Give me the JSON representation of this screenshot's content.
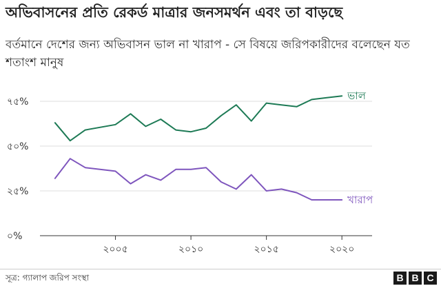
{
  "title": "অভিবাসনের প্রতি রেকর্ড মাত্রার জনসমর্থন এবং তা বাড়ছে",
  "subtitle": "বর্তমানে দেশের জন্য অভিবাসন ভাল না খারাপ - সে বিষয়ে জরিপকারীদের বলেছেন যত শতাংশ মানুষ",
  "source": "সূত্র: গ্যালাপ জরিপ সংস্থা",
  "logo": [
    "B",
    "B",
    "C"
  ],
  "chart_data": {
    "type": "line",
    "x": [
      2001,
      2002,
      2003,
      2005,
      2006,
      2007,
      2008,
      2009,
      2010,
      2011,
      2012,
      2013,
      2014,
      2015,
      2016,
      2017,
      2018,
      2019,
      2020
    ],
    "series": [
      {
        "name": "ভাল",
        "color": "#1d7a55",
        "values": [
          63,
          53,
          59,
          62,
          68,
          61,
          65,
          59,
          58,
          60,
          67,
          73,
          64,
          74,
          73,
          72,
          76,
          77,
          78
        ]
      },
      {
        "name": "খারাপ",
        "color": "#7e55bd",
        "values": [
          32,
          43,
          38,
          36,
          29,
          34,
          31,
          37,
          37,
          38,
          30,
          26,
          34,
          25,
          26,
          24,
          20,
          20,
          20
        ]
      }
    ],
    "ylim": [
      0,
      90
    ],
    "xlim": [
      2000,
      2022
    ],
    "yticks": [
      0,
      25,
      50,
      75
    ],
    "ytick_labels": [
      "০%",
      "২৫%",
      "৫০%",
      "৭৫%"
    ],
    "xticks": [
      2005,
      2010,
      2015,
      2020
    ],
    "xtick_labels": [
      "২০০৫",
      "২০১০",
      "২০১৫",
      "২০২০"
    ],
    "grid": true,
    "legend": "inline-right"
  }
}
